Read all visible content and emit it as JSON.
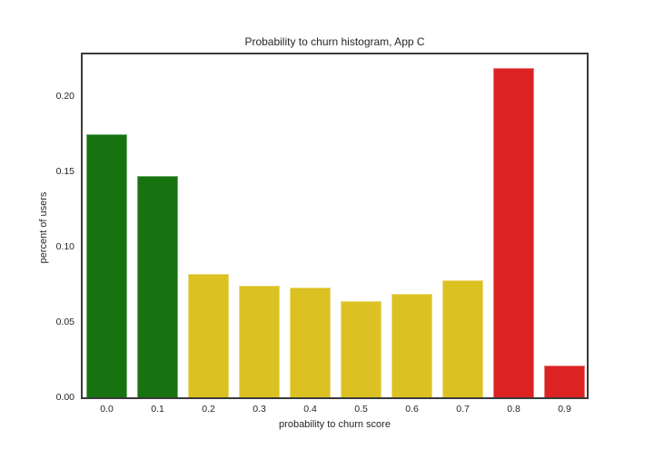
{
  "chart_data": {
    "type": "bar",
    "title": "Probability to churn histogram, App C",
    "xlabel": "probability to churn score",
    "ylabel": "percent of users",
    "categories": [
      "0.0",
      "0.1",
      "0.2",
      "0.3",
      "0.4",
      "0.5",
      "0.6",
      "0.7",
      "0.8",
      "0.9"
    ],
    "values": [
      0.175,
      0.147,
      0.082,
      0.074,
      0.073,
      0.064,
      0.069,
      0.078,
      0.219,
      0.021
    ],
    "bar_color_keys": [
      "green",
      "green",
      "yellow",
      "yellow",
      "yellow",
      "yellow",
      "yellow",
      "yellow",
      "red",
      "red"
    ],
    "y_ticks": [
      {
        "label": "0.00",
        "value": 0.0
      },
      {
        "label": "0.05",
        "value": 0.05
      },
      {
        "label": "0.10",
        "value": 0.1
      },
      {
        "label": "0.15",
        "value": 0.15
      },
      {
        "label": "0.20",
        "value": 0.2
      }
    ],
    "ylim": [
      0,
      0.228
    ],
    "grid": false,
    "legend": false,
    "colors": {
      "green": "#177310",
      "yellow": "#dcc122",
      "red": "#dd2222",
      "green_edge": "#74ab70",
      "yellow_edge": "#ebda79",
      "red_edge": "#eb7a7a",
      "spine": "#3a3a3a",
      "text": "#262626",
      "background": "#ffffff"
    }
  }
}
